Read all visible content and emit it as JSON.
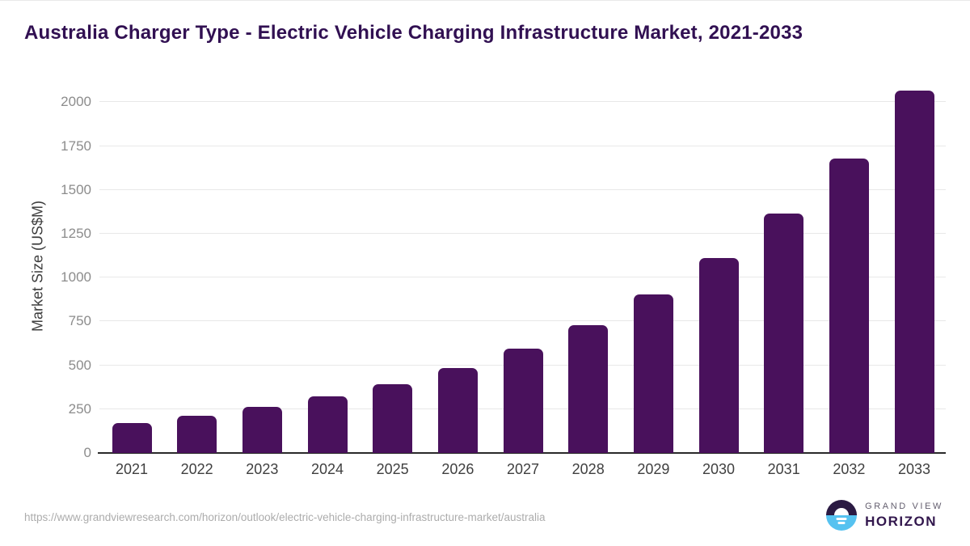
{
  "title": "Australia Charger Type - Electric Vehicle Charging Infrastructure Market, 2021-2033",
  "chart_data": {
    "type": "bar",
    "title": "Australia Charger Type - Electric Vehicle Charging Infrastructure Market, 2021-2033",
    "categories": [
      "2021",
      "2022",
      "2023",
      "2024",
      "2025",
      "2026",
      "2027",
      "2028",
      "2029",
      "2030",
      "2031",
      "2032",
      "2033"
    ],
    "values": [
      170,
      212,
      263,
      322,
      394,
      484,
      593,
      729,
      903,
      1110,
      1367,
      1680,
      2067
    ],
    "xlabel": "",
    "ylabel": "Market Size (US$M)",
    "ylim": [
      0,
      2135
    ],
    "yticks": [
      0,
      250,
      500,
      750,
      1000,
      1250,
      1500,
      1750,
      2000
    ],
    "grid": "horizontal",
    "legend": "none",
    "bar_color": "#49115c",
    "gridline_color": "#e8e8e8",
    "axis_line_color": "#2a2a2a",
    "y_tick_color": "#8c8c8c",
    "x_tick_color": "#3f3f3f",
    "title_color": "#311052"
  },
  "footer": {
    "source_url": "https://www.grandviewresearch.com/horizon/outlook/electric-vehicle-charging-infrastructure-market/australia",
    "logo": {
      "line1": "GRAND VIEW",
      "line2": "HORIZON",
      "circle_top_color": "#2b1a43",
      "circle_bottom_color": "#56c2f0"
    }
  }
}
